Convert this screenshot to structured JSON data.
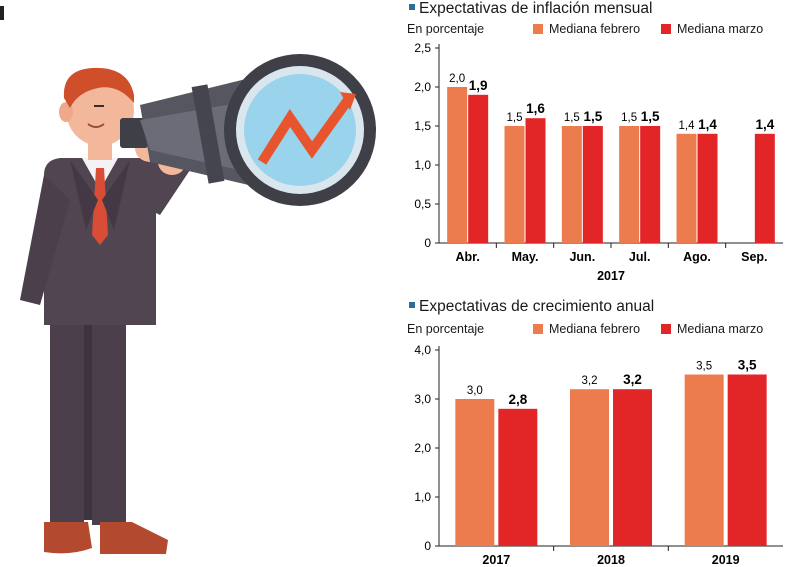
{
  "colors": {
    "febrero": "#ec7c4e",
    "marzo": "#e22628",
    "title_square": "#2d6f96",
    "axis": "#222222"
  },
  "legend": {
    "febrero": "Mediana febrero",
    "marzo": "Mediana marzo"
  },
  "chart_data": [
    {
      "type": "bar",
      "title": "Expectativas de inflación mensual",
      "unit": "En porcentaje",
      "categories": [
        "Abr.",
        "May.",
        "Jun.",
        "Jul.",
        "Ago.",
        "Sep."
      ],
      "xlabel": "2017",
      "ylim": [
        0,
        2.5
      ],
      "yticks": [
        "0",
        "0,5",
        "1,0",
        "1,5",
        "2,0",
        "2,5"
      ],
      "series": [
        {
          "name": "Mediana febrero",
          "values": [
            2.0,
            1.5,
            1.5,
            1.5,
            1.4,
            null
          ],
          "labels": [
            "2,0",
            "1,5",
            "1,5",
            "1,5",
            "1,4",
            ""
          ]
        },
        {
          "name": "Mediana marzo",
          "values": [
            1.9,
            1.6,
            1.5,
            1.5,
            1.4,
            1.4
          ],
          "labels": [
            "1,9",
            "1,6",
            "1,5",
            "1,5",
            "1,4",
            "1,4"
          ]
        }
      ]
    },
    {
      "type": "bar",
      "title": "Expectativas de crecimiento anual",
      "unit": "En porcentaje",
      "categories": [
        "2017",
        "2018",
        "2019"
      ],
      "xlabel": "",
      "ylim": [
        0,
        4.0
      ],
      "yticks": [
        "0",
        "1,0",
        "2,0",
        "3,0",
        "4,0"
      ],
      "series": [
        {
          "name": "Mediana febrero",
          "values": [
            3.0,
            3.2,
            3.5
          ],
          "labels": [
            "3,0",
            "3,2",
            "3,5"
          ]
        },
        {
          "name": "Mediana marzo",
          "values": [
            2.8,
            3.2,
            3.5
          ],
          "labels": [
            "2,8",
            "3,2",
            "3,5"
          ]
        }
      ]
    }
  ]
}
